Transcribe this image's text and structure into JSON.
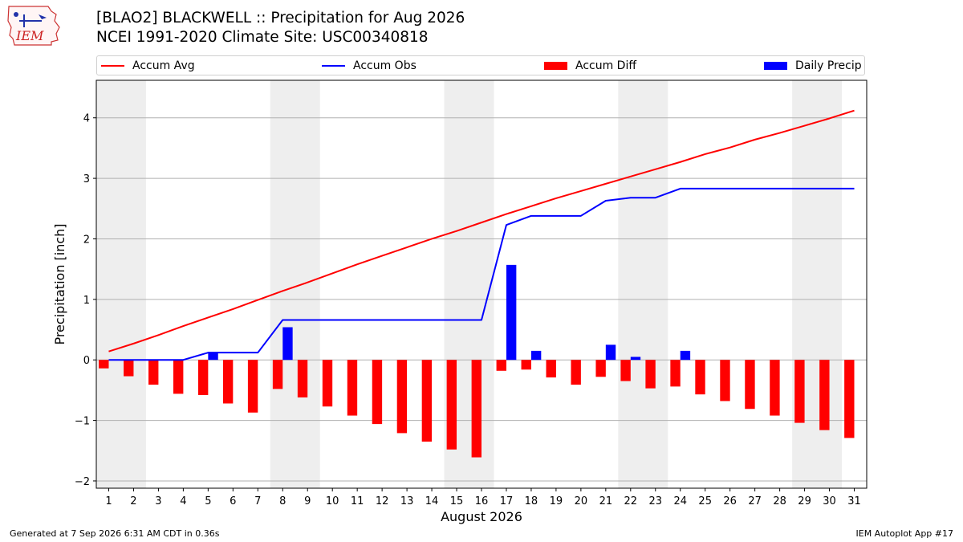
{
  "header": {
    "title_line1": "[BLAO2] BLACKWELL :: Precipitation for Aug 2026",
    "title_line2": "NCEI 1991-2020 Climate Site: USC00340818"
  },
  "logo": {
    "icon": "iem-logo-icon",
    "text": "IEM"
  },
  "footer": {
    "left": "Generated at 7 Sep 2026 6:31 AM CDT in 0.36s",
    "right": "IEM Autoplot App #17"
  },
  "chart_data": {
    "type": "line",
    "xlabel": "August 2026",
    "ylabel": "Precipitation [inch]",
    "x": [
      1,
      2,
      3,
      4,
      5,
      6,
      7,
      8,
      9,
      10,
      11,
      12,
      13,
      14,
      15,
      16,
      17,
      18,
      19,
      20,
      21,
      22,
      23,
      24,
      25,
      26,
      27,
      28,
      29,
      30,
      31
    ],
    "xlim": [
      0.5,
      31.5
    ],
    "ylim": [
      -2.12,
      4.62
    ],
    "yticks": [
      -2,
      -1,
      0,
      1,
      2,
      3,
      4
    ],
    "ytick_labels": [
      "−2",
      "−1",
      "0",
      "1",
      "2",
      "3",
      "4"
    ],
    "grid": true,
    "legend_position": "top",
    "weekend_shading": [
      [
        0.5,
        2.5
      ],
      [
        7.5,
        9.5
      ],
      [
        14.5,
        16.5
      ],
      [
        21.5,
        23.5
      ],
      [
        28.5,
        30.5
      ]
    ],
    "series": [
      {
        "name": "Accum Avg",
        "kind": "line",
        "color": "#ff0000",
        "values": [
          0.14,
          0.27,
          0.41,
          0.56,
          0.7,
          0.84,
          0.99,
          1.14,
          1.28,
          1.43,
          1.58,
          1.72,
          1.86,
          2.0,
          2.13,
          2.27,
          2.41,
          2.54,
          2.67,
          2.79,
          2.91,
          3.03,
          3.15,
          3.27,
          3.4,
          3.51,
          3.64,
          3.75,
          3.87,
          3.99,
          4.12
        ]
      },
      {
        "name": "Accum Obs",
        "kind": "line",
        "color": "#0000ff",
        "values": [
          0.0,
          0.0,
          0.0,
          0.0,
          0.12,
          0.12,
          0.12,
          0.66,
          0.66,
          0.66,
          0.66,
          0.66,
          0.66,
          0.66,
          0.66,
          0.66,
          2.23,
          2.38,
          2.38,
          2.38,
          2.63,
          2.68,
          2.68,
          2.83,
          2.83,
          2.83,
          2.83,
          2.83,
          2.83,
          2.83,
          2.83
        ]
      },
      {
        "name": "Accum Diff",
        "kind": "bar",
        "color": "#ff0000",
        "offset": -0.2,
        "values": [
          -0.14,
          -0.27,
          -0.41,
          -0.56,
          -0.58,
          -0.72,
          -0.87,
          -0.48,
          -0.62,
          -0.77,
          -0.92,
          -1.06,
          -1.21,
          -1.35,
          -1.48,
          -1.61,
          -0.18,
          -0.16,
          -0.29,
          -0.41,
          -0.28,
          -0.35,
          -0.47,
          -0.44,
          -0.57,
          -0.68,
          -0.81,
          -0.92,
          -1.04,
          -1.16,
          -1.29
        ]
      },
      {
        "name": "Daily Precip",
        "kind": "bar",
        "color": "#0000ff",
        "offset": 0.2,
        "values": [
          0,
          0,
          0,
          0,
          0.12,
          0,
          0,
          0.54,
          0,
          0,
          0,
          0,
          0,
          0,
          0,
          0,
          1.57,
          0.15,
          0,
          0,
          0.25,
          0.05,
          0,
          0.15,
          0,
          0,
          0,
          0,
          0,
          0,
          0
        ]
      }
    ]
  }
}
